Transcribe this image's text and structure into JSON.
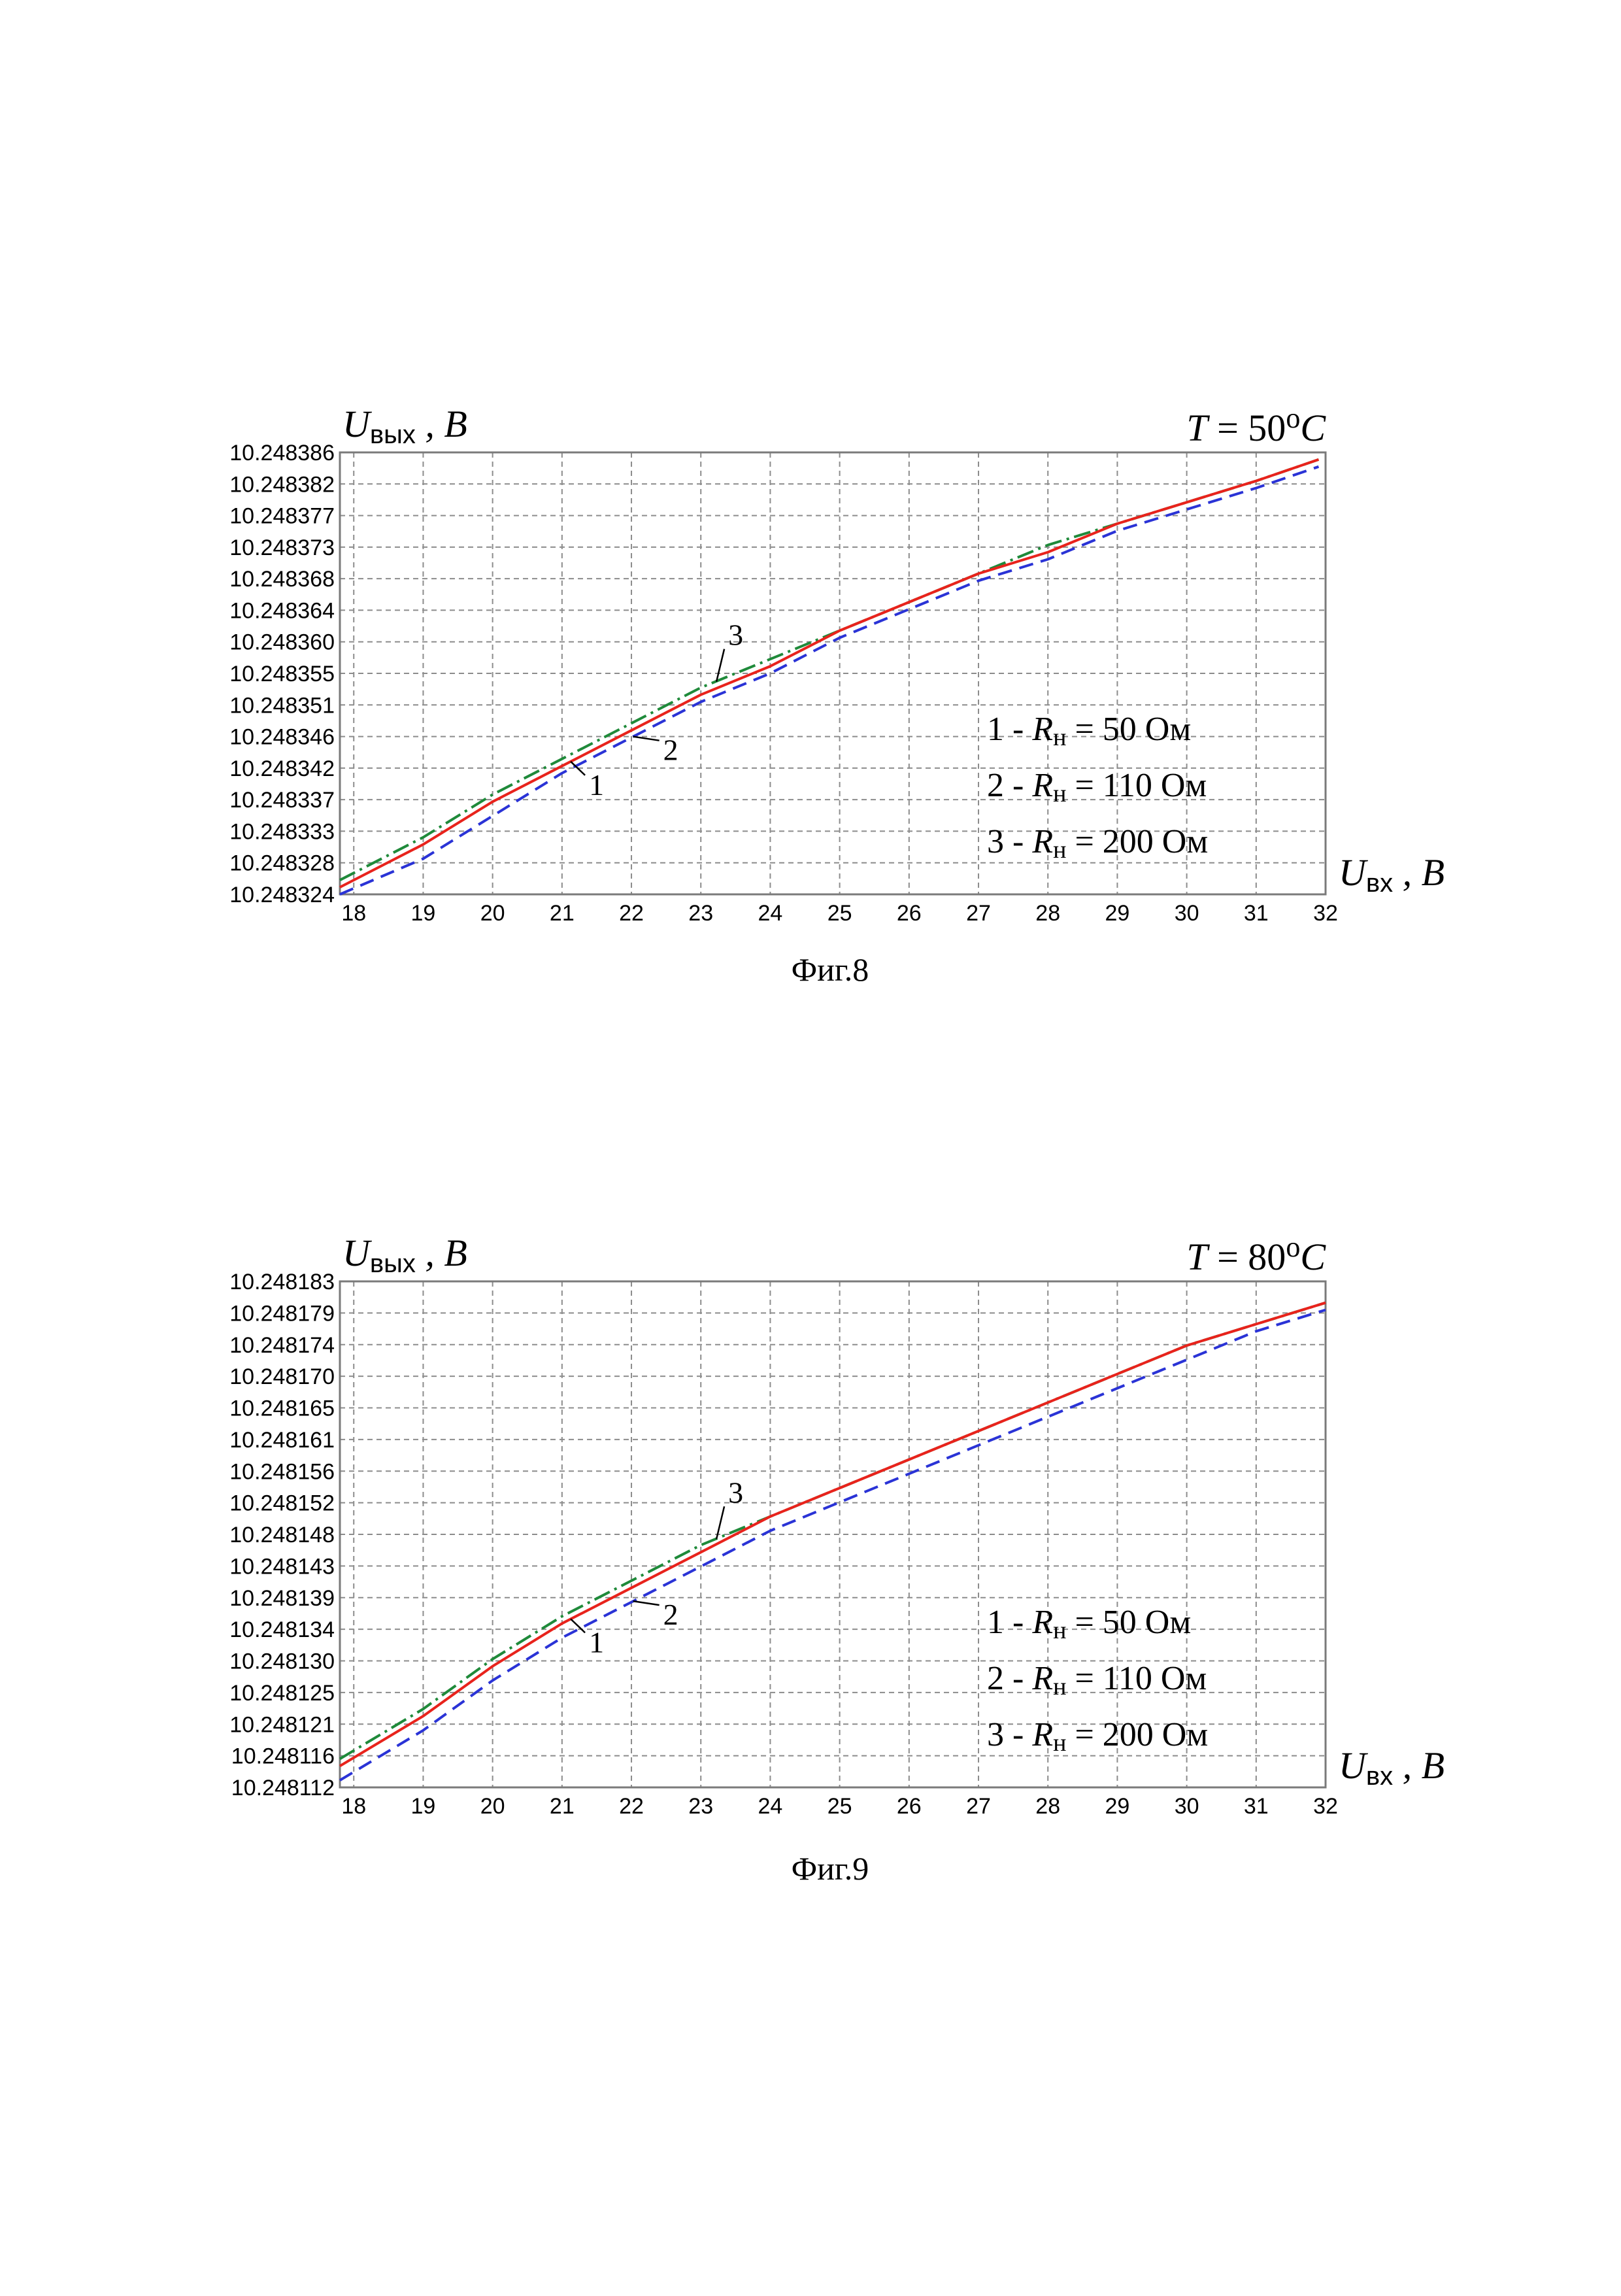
{
  "figures": [
    {
      "caption": "Фиг.8",
      "temperature_label": {
        "var": "T",
        "text": " = 50",
        "degree": "o",
        "unit": "C"
      },
      "ylabel": {
        "main": "U",
        "sub": "вых",
        "unit": ", B"
      },
      "xlabel": {
        "main": "U",
        "sub": "вх",
        "unit": ", B"
      },
      "legend": [
        {
          "num": "1 - ",
          "var": "R",
          "sub": "н",
          "rest": " = 50 Ом"
        },
        {
          "num": "2 - ",
          "var": "R",
          "sub": "н",
          "rest": " = 110 Ом"
        },
        {
          "num": "3 - ",
          "var": "R",
          "sub": "н",
          "rest": " = 200 Ом"
        }
      ],
      "curve_labels": [
        "1",
        "2",
        "3"
      ]
    },
    {
      "caption": "Фиг.9",
      "temperature_label": {
        "var": "T",
        "text": " = 80",
        "degree": "o",
        "unit": "C"
      },
      "ylabel": {
        "main": "U",
        "sub": "вых",
        "unit": ", B"
      },
      "xlabel": {
        "main": "U",
        "sub": "вх",
        "unit": ", B"
      },
      "legend": [
        {
          "num": "1 - ",
          "var": "R",
          "sub": "н",
          "rest": " = 50 Ом"
        },
        {
          "num": "2 - ",
          "var": "R",
          "sub": "н",
          "rest": " = 110 Ом"
        },
        {
          "num": "3 - ",
          "var": "R",
          "sub": "н",
          "rest": " = 200 Ом"
        }
      ],
      "curve_labels": [
        "1",
        "2",
        "3"
      ]
    }
  ],
  "chart_data": [
    {
      "type": "line",
      "xlim": [
        17.8,
        32
      ],
      "ylim": [
        10.248324,
        10.248386
      ],
      "x_ticks": [
        18,
        19,
        20,
        21,
        22,
        23,
        24,
        25,
        26,
        27,
        28,
        29,
        30,
        31,
        32
      ],
      "y_ticks": [
        "10.248324",
        "10.248328",
        "10.248333",
        "10.248337",
        "10.248342",
        "10.248346",
        "10.248351",
        "10.248355",
        "10.248360",
        "10.248364",
        "10.248368",
        "10.248373",
        "10.248377",
        "10.248382",
        "10.248386"
      ],
      "grid": true,
      "x": [
        17.8,
        19,
        20,
        21,
        22,
        23,
        24,
        25,
        26,
        27,
        28,
        29,
        30,
        31,
        31.9
      ],
      "series": [
        {
          "name": "1 - Rн = 50 Ом",
          "color": "#e8231c",
          "dash": "solid",
          "values": [
            10.248325,
            10.248331,
            10.248337,
            10.248342,
            10.248347,
            10.248352,
            10.248356,
            10.248361,
            10.248365,
            10.248369,
            10.248372,
            10.248376,
            10.248379,
            10.248382,
            10.248385
          ]
        },
        {
          "name": "2 - Rн = 110 Ом",
          "color": "#2a33d6",
          "dash": "dashed",
          "values": [
            10.248324,
            10.248329,
            10.248335,
            10.248341,
            10.248346,
            10.248351,
            10.248355,
            10.24836,
            10.248364,
            10.248368,
            10.248371,
            10.248375,
            10.248378,
            10.248381,
            10.248384
          ]
        },
        {
          "name": "3 - Rн = 200 Ом",
          "color": "#1f8a3a",
          "dash": "dashdot",
          "values": [
            10.248326,
            10.248332,
            10.248338,
            10.248343,
            10.248348,
            10.248353,
            10.248357,
            10.248361,
            10.248365,
            10.248369,
            10.248373,
            10.248376,
            10.248379,
            10.248382,
            10.248385
          ]
        }
      ]
    },
    {
      "type": "line",
      "xlim": [
        17.8,
        32
      ],
      "ylim": [
        10.248112,
        10.248183
      ],
      "x_ticks": [
        18,
        19,
        20,
        21,
        22,
        23,
        24,
        25,
        26,
        27,
        28,
        29,
        30,
        31,
        32
      ],
      "y_ticks": [
        "10.248112",
        "10.248116",
        "10.248121",
        "10.248125",
        "10.248130",
        "10.248134",
        "10.248139",
        "10.248143",
        "10.248148",
        "10.248152",
        "10.248156",
        "10.248161",
        "10.248165",
        "10.248170",
        "10.248174",
        "10.248179",
        "10.248183"
      ],
      "grid": true,
      "x": [
        17.8,
        19,
        20,
        21,
        22,
        23,
        24,
        25,
        26,
        27,
        28,
        29,
        30,
        31,
        32
      ],
      "series": [
        {
          "name": "1 - Rн = 50 Ом",
          "color": "#e8231c",
          "dash": "solid",
          "values": [
            10.248115,
            10.248122,
            10.248129,
            10.248135,
            10.24814,
            10.248145,
            10.24815,
            10.248154,
            10.248158,
            10.248162,
            10.248166,
            10.24817,
            10.248174,
            10.248177,
            10.24818
          ]
        },
        {
          "name": "2 - Rн = 110 Ом",
          "color": "#2a33d6",
          "dash": "dashed",
          "values": [
            10.248113,
            10.24812,
            10.248127,
            10.248133,
            10.248138,
            10.248143,
            10.248148,
            10.248152,
            10.248156,
            10.24816,
            10.248164,
            10.248168,
            10.248172,
            10.248176,
            10.248179
          ]
        },
        {
          "name": "3 - Rн = 200 Ом",
          "color": "#1f8a3a",
          "dash": "dashdot",
          "values": [
            10.248116,
            10.248123,
            10.24813,
            10.248136,
            10.248141,
            10.248146,
            10.24815,
            10.248154,
            10.248158,
            10.248162,
            10.248166,
            10.24817,
            10.248174,
            10.248177,
            10.24818
          ]
        }
      ]
    }
  ]
}
